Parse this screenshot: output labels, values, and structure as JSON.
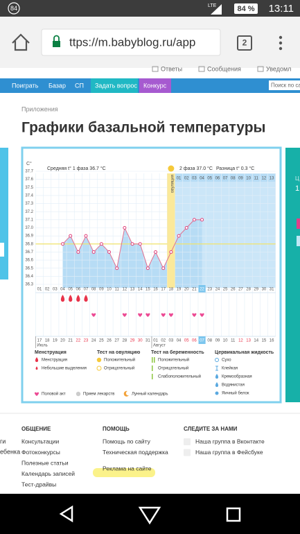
{
  "status_bar": {
    "notification": "84",
    "network": "LTE",
    "battery": "84 %",
    "time": "13:11"
  },
  "browser": {
    "url": "ttps://m.babyblog.ru/app",
    "tabs": "2"
  },
  "top_links": [
    "Ответы",
    "Сообщения",
    "Уведомл"
  ],
  "nav": [
    "Поиграть",
    "Базар",
    "СП",
    "Задать вопрос",
    "Конкурс"
  ],
  "search_placeholder": "Поиск по сайту",
  "breadcrumb": "Приложения",
  "title": "Графики базальной температуры",
  "right_fragments": [
    "Ц",
    "1"
  ],
  "chart_data": {
    "type": "line",
    "y_label": "C°",
    "phase1_avg": "Средняя t° 1 фаза 36.7 °C",
    "phase2_avg": "2 фаза 37.0 °C",
    "difference": "Разница t° 0.3 °C",
    "ovulation_label": "овуляция",
    "ylim": [
      36.3,
      37.7
    ],
    "yticks": [
      37.7,
      37.6,
      37.5,
      37.4,
      37.3,
      37.2,
      37.1,
      {
        "value": 37,
        "label": "37.0"
      },
      36.9,
      36.8,
      36.7,
      36.6,
      36.5,
      36.4,
      36.3
    ],
    "categories": [
      "01",
      "02",
      "03",
      "04",
      "05",
      "06",
      "07",
      "08",
      "09",
      "10",
      "11",
      "12",
      "13",
      "14",
      "15",
      "16",
      "17",
      "18",
      "19",
      "20",
      "21",
      "22",
      "23",
      "24",
      "25",
      "26",
      "27",
      "28",
      "29",
      "30",
      "31"
    ],
    "values": [
      null,
      null,
      null,
      36.8,
      36.9,
      36.7,
      36.9,
      36.7,
      36.8,
      36.7,
      36.5,
      37.0,
      36.8,
      36.8,
      36.5,
      36.7,
      36.5,
      36.7,
      36.9,
      37.0,
      37.1,
      37.1,
      null,
      null,
      null,
      null,
      null,
      null,
      null,
      null,
      null
    ],
    "phase2_days": [
      "01",
      "02",
      "03",
      "04",
      "05",
      "06",
      "07",
      "08",
      "09",
      "10",
      "11",
      "12",
      "13"
    ],
    "dates": [
      "17",
      "18",
      "19",
      "20",
      "21",
      "22",
      "23",
      "24",
      "25",
      "26",
      "27",
      "28",
      "29",
      "30",
      "31",
      "01",
      "02",
      "03",
      "04",
      "05",
      "06",
      "07",
      "08",
      "09",
      "10",
      "11",
      "12",
      "13",
      "14",
      "15",
      "16"
    ],
    "months": [
      "Июль",
      "Август"
    ],
    "weekend_dates": [
      "22",
      "23",
      "29",
      "30",
      "05",
      "06",
      "12",
      "13"
    ],
    "cover_line": 36.8,
    "ovulation_day": "18",
    "menstruation_days": [
      "04",
      "05",
      "06",
      "07"
    ],
    "intercourse_days": [
      "08",
      "12",
      "14",
      "15",
      "17",
      "18",
      "21",
      "22"
    ],
    "today_day": "22",
    "today_date": "07",
    "legend": [
      {
        "title": "Менструация",
        "items": [
          "Менструация",
          "Небольшие выделения"
        ]
      },
      {
        "title": "Тест на овуляцию",
        "items": [
          "Положительный",
          "Отрицательный"
        ]
      },
      {
        "title": "Тест на беременность",
        "items": [
          "Положительный",
          "Отрицательный",
          "Слабоположительный"
        ]
      },
      {
        "title": "Цервикальная жидкость",
        "items": [
          "Сухо",
          "Клейкая",
          "Кремообразная",
          "Водянистая",
          "Яичный белок"
        ]
      }
    ],
    "legend_extra": [
      "Половой акт",
      "Прием лекарств",
      "Лунный календарь"
    ]
  },
  "footer": {
    "left_fragments": [
      "ги",
      "ебенка"
    ],
    "columns": [
      {
        "title": "ОБЩЕНИЕ",
        "links": [
          "Консультации",
          "Фотоконкурсы",
          "Полезные статьи",
          "Календарь записей",
          "Тест-драйвы"
        ]
      },
      {
        "title": "ПОМОЩЬ",
        "links": [
          "Помощь по сайту",
          "Техническая поддержка",
          "Реклама на сайте"
        ]
      },
      {
        "title": "СЛЕДИТЕ ЗА НАМИ",
        "links": [
          "Наша группа в Вконтакте",
          "Наша группа в Фейсбуке"
        ]
      }
    ]
  }
}
